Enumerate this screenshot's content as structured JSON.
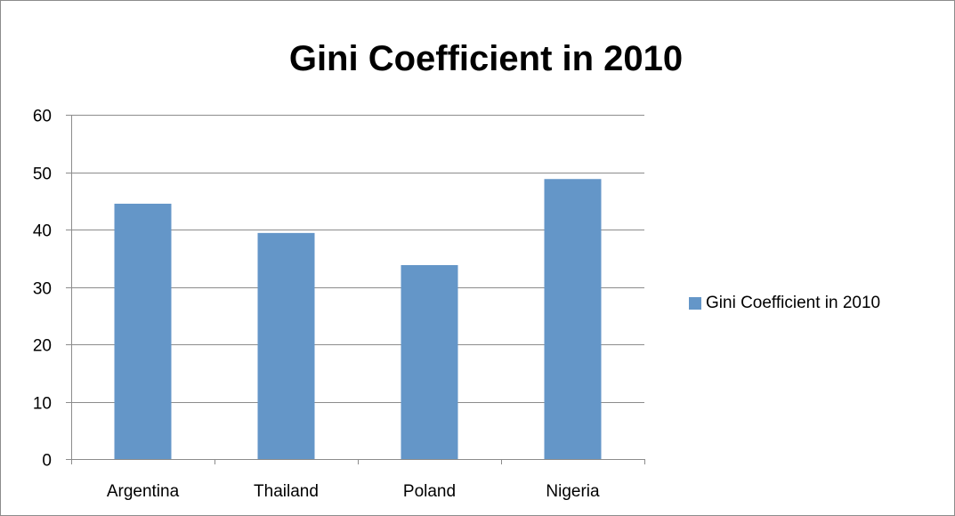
{
  "chart_data": {
    "type": "bar",
    "title": "Gini Coefficient in 2010",
    "categories": [
      "Argentina",
      "Thailand",
      "Poland",
      "Nigeria"
    ],
    "series": [
      {
        "name": "Gini Coefficient in 2010",
        "values": [
          44.5,
          39.4,
          33.8,
          48.8
        ],
        "color": "#6496c8"
      }
    ],
    "xlabel": "",
    "ylabel": "",
    "ylim": [
      0,
      60
    ],
    "yticks": [
      "0",
      "10",
      "20",
      "30",
      "40",
      "50",
      "60"
    ],
    "grid": true,
    "legend_position": "right"
  }
}
